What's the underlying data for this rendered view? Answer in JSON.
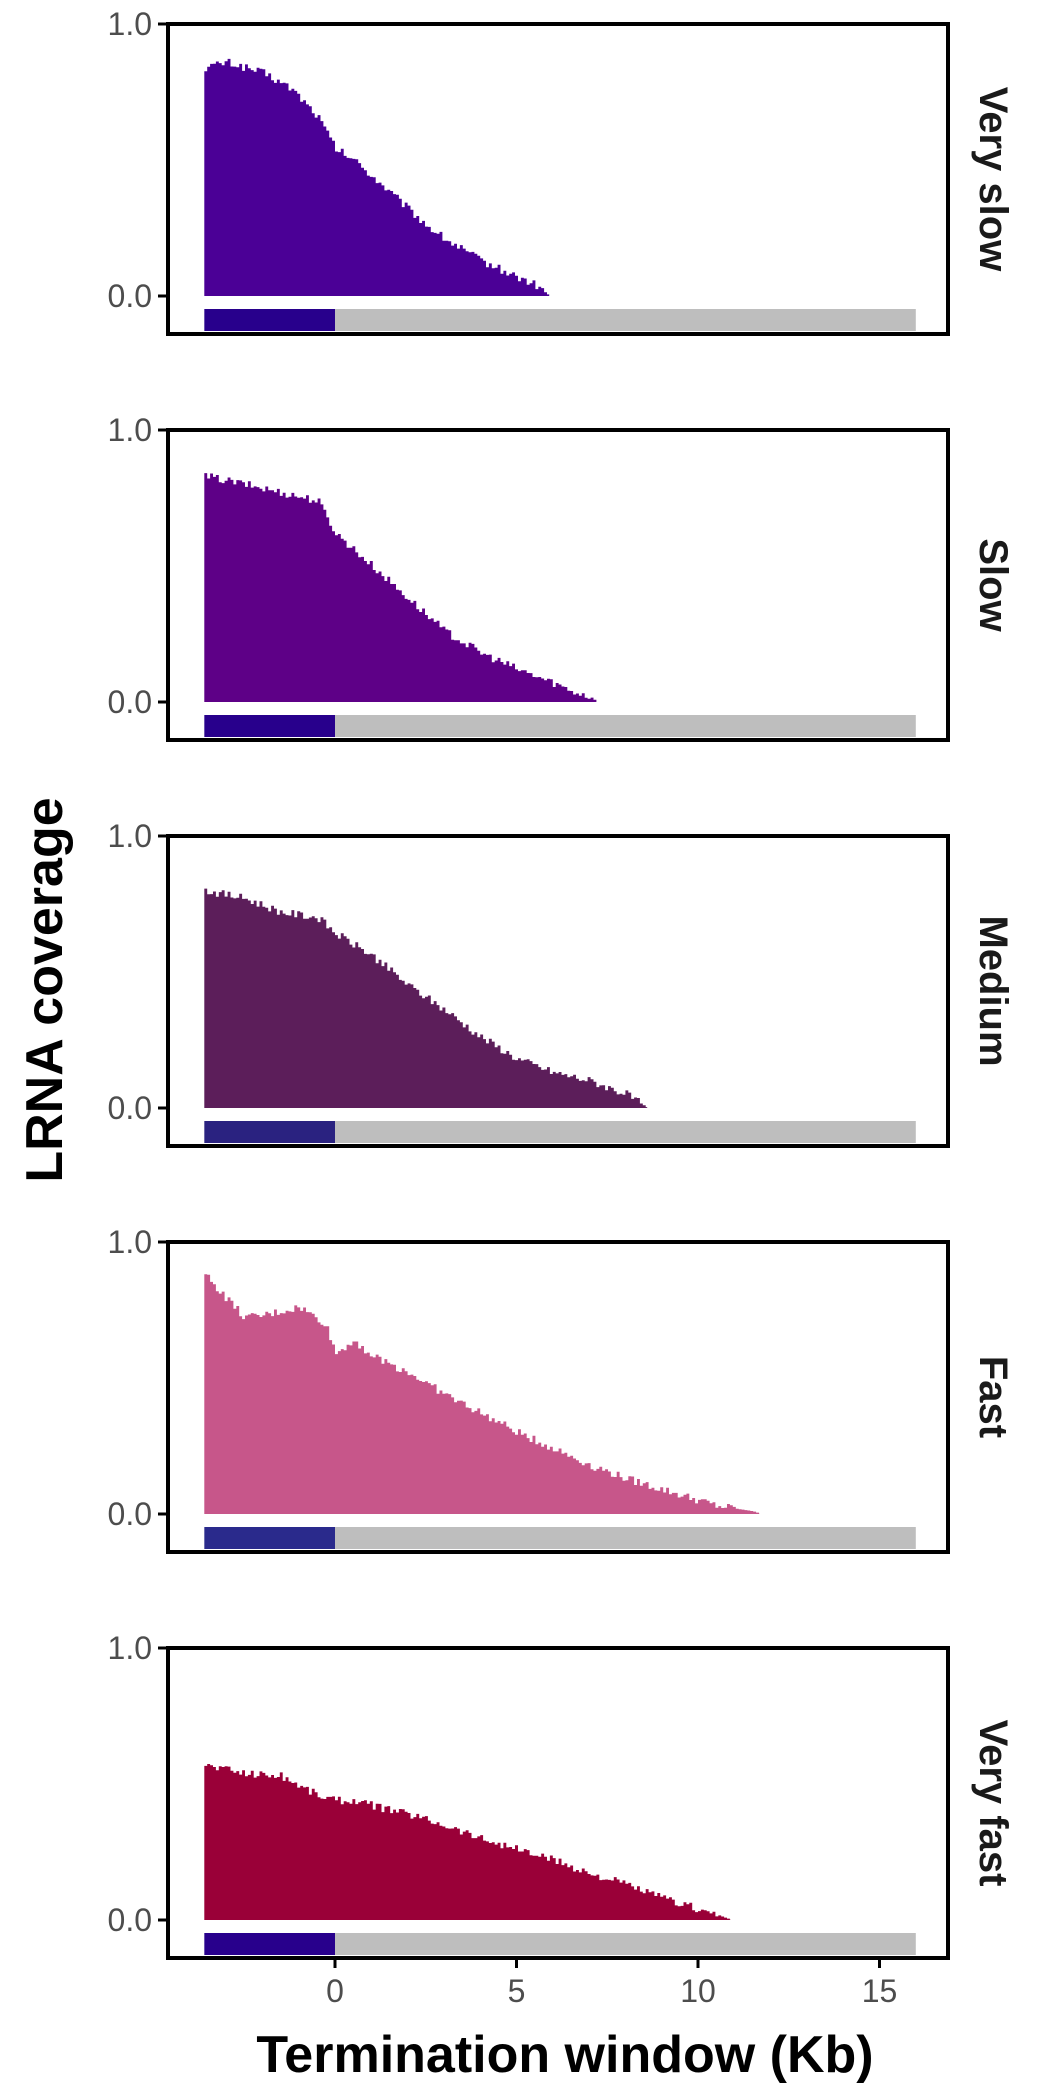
{
  "chart_data": {
    "type": "area",
    "xlabel": "Termination window (Kb)",
    "ylabel": "LRNA coverage",
    "xlim": [
      -4.6,
      16.5
    ],
    "ylim": [
      -0.14,
      1.0
    ],
    "x_ticks": [
      0,
      5,
      10,
      15
    ],
    "x_tick_labels": [
      "0",
      "5",
      "10",
      "15"
    ],
    "y_ticks": [
      0.0,
      1.0
    ],
    "y_tick_labels": [
      "0.0",
      "1.0"
    ],
    "grid": false,
    "legend": "none",
    "annotation_bar": {
      "gene_body_kb": [
        -3.6,
        0
      ],
      "downstream_kb": [
        0,
        16
      ],
      "downstream_color": "#bebebe"
    },
    "panels": [
      {
        "strip": "Very slow",
        "color": "#4b0096",
        "bar_color": "#28008c",
        "x": [
          -3.6,
          -3.0,
          -2.0,
          -1.2,
          -0.5,
          0.0,
          0.5,
          1.0,
          1.5,
          2.0,
          2.5,
          3.0,
          3.5,
          4.0,
          4.5,
          5.0,
          5.5,
          5.9
        ],
        "values": [
          0.84,
          0.86,
          0.82,
          0.76,
          0.66,
          0.54,
          0.5,
          0.44,
          0.38,
          0.32,
          0.26,
          0.21,
          0.17,
          0.13,
          0.1,
          0.07,
          0.04,
          0.0
        ]
      },
      {
        "strip": "Slow",
        "color": "#5e0087",
        "bar_color": "#28008c",
        "x": [
          -3.6,
          -2.5,
          -1.5,
          -0.5,
          0.0,
          0.5,
          1.0,
          2.0,
          3.0,
          4.0,
          5.0,
          6.0,
          6.5,
          7.0,
          7.2
        ],
        "values": [
          0.83,
          0.8,
          0.77,
          0.74,
          0.62,
          0.56,
          0.5,
          0.38,
          0.26,
          0.18,
          0.12,
          0.07,
          0.04,
          0.02,
          0.0
        ]
      },
      {
        "strip": "Medium",
        "color": "#5c1e5a",
        "bar_color": "#2a2280",
        "x": [
          -3.6,
          -2.5,
          -1.5,
          -0.5,
          0.0,
          1.0,
          2.0,
          3.0,
          4.0,
          5.0,
          6.0,
          7.0,
          8.0,
          8.6
        ],
        "values": [
          0.8,
          0.77,
          0.72,
          0.7,
          0.64,
          0.56,
          0.45,
          0.36,
          0.26,
          0.18,
          0.13,
          0.1,
          0.05,
          0.0
        ]
      },
      {
        "strip": "Fast",
        "color": "#c7568a",
        "bar_color": "#2a2a8c",
        "x": [
          -3.6,
          -3.0,
          -2.5,
          -2.0,
          -1.0,
          -0.3,
          0.0,
          0.5,
          1.0,
          2.0,
          3.0,
          4.0,
          5.0,
          6.0,
          7.0,
          8.0,
          9.0,
          10.0,
          10.5,
          11.0,
          11.5,
          11.7
        ],
        "values": [
          0.88,
          0.79,
          0.72,
          0.73,
          0.76,
          0.7,
          0.59,
          0.64,
          0.58,
          0.52,
          0.44,
          0.37,
          0.3,
          0.24,
          0.18,
          0.13,
          0.09,
          0.05,
          0.03,
          0.02,
          0.01,
          0.0
        ]
      },
      {
        "strip": "Very fast",
        "color": "#9a0038",
        "bar_color": "#28008c",
        "x": [
          -3.6,
          -2.5,
          -1.5,
          -0.5,
          0.0,
          0.5,
          1.0,
          2.0,
          3.0,
          4.0,
          5.0,
          6.0,
          7.0,
          8.0,
          9.0,
          10.0,
          10.5,
          10.9
        ],
        "values": [
          0.57,
          0.54,
          0.53,
          0.46,
          0.44,
          0.44,
          0.42,
          0.39,
          0.35,
          0.3,
          0.26,
          0.22,
          0.17,
          0.13,
          0.08,
          0.04,
          0.02,
          0.0
        ]
      }
    ]
  }
}
